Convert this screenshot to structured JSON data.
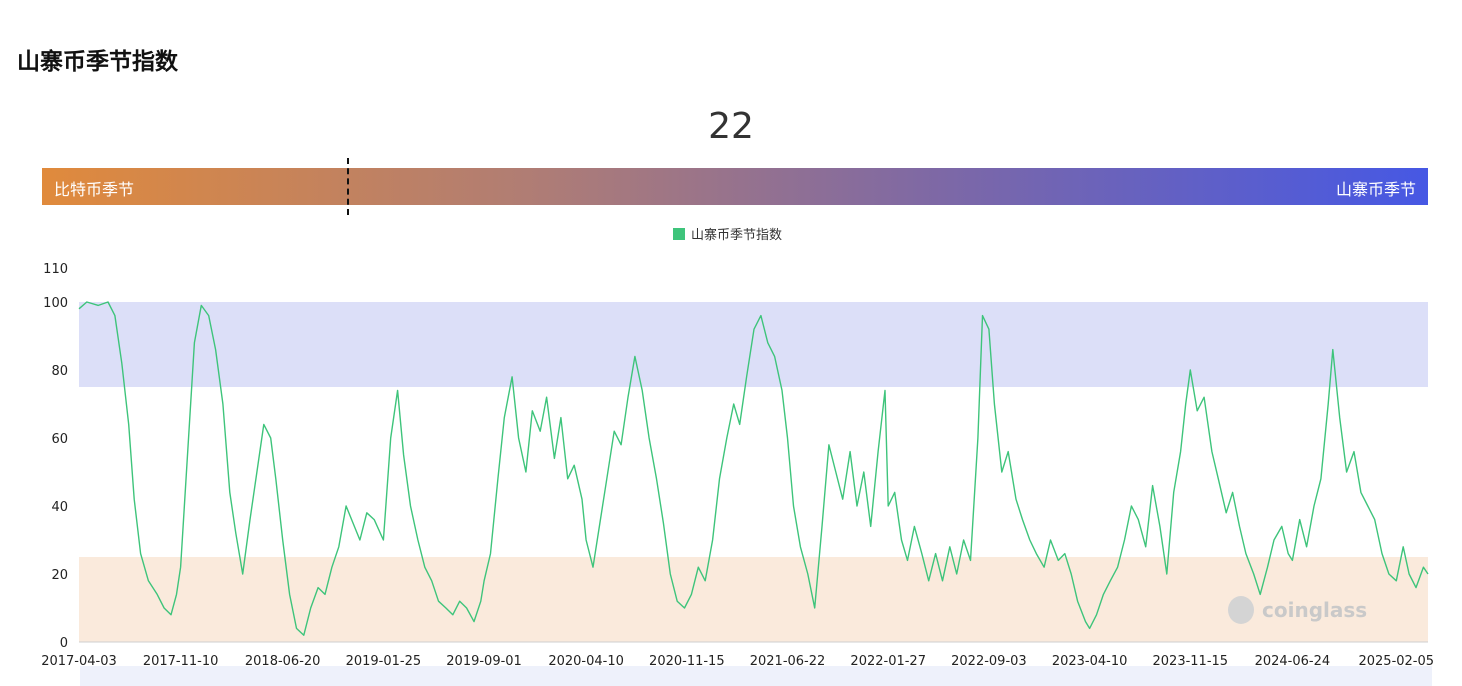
{
  "page": {
    "title": "山寨币季节指数"
  },
  "gauge": {
    "value": "22",
    "left_label": "比特币季节",
    "right_label": "山寨币季节",
    "value_fraction": 0.22
  },
  "chart_data": {
    "type": "line",
    "legend": "山寨币季节指数",
    "ylim": [
      0,
      110
    ],
    "y_ticks": [
      "0",
      "20",
      "40",
      "60",
      "80",
      "100",
      "110"
    ],
    "x_tick_labels": [
      "2017-04-03",
      "2017-11-10",
      "2018-06-20",
      "2019-01-25",
      "2019-09-01",
      "2020-04-10",
      "2020-11-15",
      "2021-06-22",
      "2022-01-27",
      "2022-09-03",
      "2023-04-10",
      "2023-11-15",
      "2024-06-24",
      "2025-02-05"
    ],
    "bands": [
      {
        "name": "altcoin-season-band",
        "from": 75,
        "to": 100,
        "color": "#dcdff8"
      },
      {
        "name": "bitcoin-season-band",
        "from": 0,
        "to": 25,
        "color": "#faeadc"
      }
    ],
    "series_color": "#3ec47b",
    "x_range": [
      "2017-04-03",
      "2025-04-15"
    ],
    "series": [
      {
        "name": "山寨币季节指数",
        "points": [
          [
            "2017-04-03",
            98
          ],
          [
            "2017-04-20",
            100
          ],
          [
            "2017-05-15",
            99
          ],
          [
            "2017-06-05",
            100
          ],
          [
            "2017-06-20",
            96
          ],
          [
            "2017-07-05",
            82
          ],
          [
            "2017-07-20",
            64
          ],
          [
            "2017-08-01",
            42
          ],
          [
            "2017-08-15",
            26
          ],
          [
            "2017-09-01",
            18
          ],
          [
            "2017-09-20",
            14
          ],
          [
            "2017-10-05",
            10
          ],
          [
            "2017-10-20",
            8
          ],
          [
            "2017-11-01",
            14
          ],
          [
            "2017-11-10",
            22
          ],
          [
            "2017-11-25",
            55
          ],
          [
            "2017-12-10",
            88
          ],
          [
            "2017-12-25",
            99
          ],
          [
            "2018-01-10",
            96
          ],
          [
            "2018-01-25",
            86
          ],
          [
            "2018-02-10",
            70
          ],
          [
            "2018-02-25",
            44
          ],
          [
            "2018-03-10",
            32
          ],
          [
            "2018-03-25",
            20
          ],
          [
            "2018-04-10",
            36
          ],
          [
            "2018-04-25",
            50
          ],
          [
            "2018-05-10",
            64
          ],
          [
            "2018-05-25",
            60
          ],
          [
            "2018-06-05",
            48
          ],
          [
            "2018-06-20",
            30
          ],
          [
            "2018-07-05",
            14
          ],
          [
            "2018-07-20",
            4
          ],
          [
            "2018-08-05",
            2
          ],
          [
            "2018-08-20",
            10
          ],
          [
            "2018-09-05",
            16
          ],
          [
            "2018-09-20",
            14
          ],
          [
            "2018-10-05",
            22
          ],
          [
            "2018-10-20",
            28
          ],
          [
            "2018-11-05",
            40
          ],
          [
            "2018-11-20",
            35
          ],
          [
            "2018-12-05",
            30
          ],
          [
            "2018-12-20",
            38
          ],
          [
            "2019-01-05",
            36
          ],
          [
            "2019-01-25",
            30
          ],
          [
            "2019-02-10",
            60
          ],
          [
            "2019-02-25",
            74
          ],
          [
            "2019-03-10",
            55
          ],
          [
            "2019-03-25",
            40
          ],
          [
            "2019-04-10",
            30
          ],
          [
            "2019-04-25",
            22
          ],
          [
            "2019-05-10",
            18
          ],
          [
            "2019-05-25",
            12
          ],
          [
            "2019-06-10",
            10
          ],
          [
            "2019-06-25",
            8
          ],
          [
            "2019-07-10",
            12
          ],
          [
            "2019-07-25",
            10
          ],
          [
            "2019-08-10",
            6
          ],
          [
            "2019-08-25",
            12
          ],
          [
            "2019-09-01",
            18
          ],
          [
            "2019-09-15",
            26
          ],
          [
            "2019-10-01",
            48
          ],
          [
            "2019-10-15",
            66
          ],
          [
            "2019-11-01",
            78
          ],
          [
            "2019-11-15",
            60
          ],
          [
            "2019-12-01",
            50
          ],
          [
            "2019-12-15",
            68
          ],
          [
            "2020-01-01",
            62
          ],
          [
            "2020-01-15",
            72
          ],
          [
            "2020-02-01",
            54
          ],
          [
            "2020-02-15",
            66
          ],
          [
            "2020-03-01",
            48
          ],
          [
            "2020-03-15",
            52
          ],
          [
            "2020-04-01",
            42
          ],
          [
            "2020-04-10",
            30
          ],
          [
            "2020-04-25",
            22
          ],
          [
            "2020-05-10",
            35
          ],
          [
            "2020-05-25",
            48
          ],
          [
            "2020-06-10",
            62
          ],
          [
            "2020-06-25",
            58
          ],
          [
            "2020-07-10",
            72
          ],
          [
            "2020-07-25",
            84
          ],
          [
            "2020-08-10",
            74
          ],
          [
            "2020-08-25",
            60
          ],
          [
            "2020-09-10",
            48
          ],
          [
            "2020-09-25",
            35
          ],
          [
            "2020-10-10",
            20
          ],
          [
            "2020-10-25",
            12
          ],
          [
            "2020-11-10",
            10
          ],
          [
            "2020-11-25",
            14
          ],
          [
            "2020-12-10",
            22
          ],
          [
            "2020-12-25",
            18
          ],
          [
            "2021-01-10",
            30
          ],
          [
            "2021-01-25",
            48
          ],
          [
            "2021-02-10",
            60
          ],
          [
            "2021-02-25",
            70
          ],
          [
            "2021-03-10",
            64
          ],
          [
            "2021-03-25",
            78
          ],
          [
            "2021-04-10",
            92
          ],
          [
            "2021-04-25",
            96
          ],
          [
            "2021-05-10",
            88
          ],
          [
            "2021-05-25",
            84
          ],
          [
            "2021-06-10",
            74
          ],
          [
            "2021-06-22",
            60
          ],
          [
            "2021-07-05",
            40
          ],
          [
            "2021-07-20",
            28
          ],
          [
            "2021-08-05",
            20
          ],
          [
            "2021-08-20",
            10
          ],
          [
            "2021-09-05",
            34
          ],
          [
            "2021-09-20",
            58
          ],
          [
            "2021-10-05",
            50
          ],
          [
            "2021-10-20",
            42
          ],
          [
            "2021-11-05",
            56
          ],
          [
            "2021-11-20",
            40
          ],
          [
            "2021-12-05",
            50
          ],
          [
            "2021-12-20",
            34
          ],
          [
            "2022-01-05",
            56
          ],
          [
            "2022-01-20",
            74
          ],
          [
            "2022-01-27",
            40
          ],
          [
            "2022-02-10",
            44
          ],
          [
            "2022-02-25",
            30
          ],
          [
            "2022-03-10",
            24
          ],
          [
            "2022-03-25",
            34
          ],
          [
            "2022-04-10",
            26
          ],
          [
            "2022-04-25",
            18
          ],
          [
            "2022-05-10",
            26
          ],
          [
            "2022-05-25",
            18
          ],
          [
            "2022-06-10",
            28
          ],
          [
            "2022-06-25",
            20
          ],
          [
            "2022-07-10",
            30
          ],
          [
            "2022-07-25",
            24
          ],
          [
            "2022-08-10",
            60
          ],
          [
            "2022-08-20",
            96
          ],
          [
            "2022-09-03",
            92
          ],
          [
            "2022-09-15",
            70
          ],
          [
            "2022-10-01",
            50
          ],
          [
            "2022-10-15",
            56
          ],
          [
            "2022-11-01",
            42
          ],
          [
            "2022-11-15",
            36
          ],
          [
            "2022-12-01",
            30
          ],
          [
            "2022-12-15",
            26
          ],
          [
            "2023-01-01",
            22
          ],
          [
            "2023-01-15",
            30
          ],
          [
            "2023-02-01",
            24
          ],
          [
            "2023-02-15",
            26
          ],
          [
            "2023-03-01",
            20
          ],
          [
            "2023-03-15",
            12
          ],
          [
            "2023-04-01",
            6
          ],
          [
            "2023-04-10",
            4
          ],
          [
            "2023-04-25",
            8
          ],
          [
            "2023-05-10",
            14
          ],
          [
            "2023-05-25",
            18
          ],
          [
            "2023-06-10",
            22
          ],
          [
            "2023-06-25",
            30
          ],
          [
            "2023-07-10",
            40
          ],
          [
            "2023-07-25",
            36
          ],
          [
            "2023-08-10",
            28
          ],
          [
            "2023-08-25",
            46
          ],
          [
            "2023-09-10",
            34
          ],
          [
            "2023-09-25",
            20
          ],
          [
            "2023-10-10",
            44
          ],
          [
            "2023-10-25",
            56
          ],
          [
            "2023-11-05",
            70
          ],
          [
            "2023-11-15",
            80
          ],
          [
            "2023-11-30",
            68
          ],
          [
            "2023-12-15",
            72
          ],
          [
            "2024-01-01",
            56
          ],
          [
            "2024-01-15",
            48
          ],
          [
            "2024-02-01",
            38
          ],
          [
            "2024-02-15",
            44
          ],
          [
            "2024-03-01",
            34
          ],
          [
            "2024-03-15",
            26
          ],
          [
            "2024-04-01",
            20
          ],
          [
            "2024-04-15",
            14
          ],
          [
            "2024-05-01",
            22
          ],
          [
            "2024-05-15",
            30
          ],
          [
            "2024-06-01",
            34
          ],
          [
            "2024-06-15",
            26
          ],
          [
            "2024-06-24",
            24
          ],
          [
            "2024-07-10",
            36
          ],
          [
            "2024-07-25",
            28
          ],
          [
            "2024-08-10",
            40
          ],
          [
            "2024-08-25",
            48
          ],
          [
            "2024-09-10",
            70
          ],
          [
            "2024-09-20",
            86
          ],
          [
            "2024-10-05",
            66
          ],
          [
            "2024-10-20",
            50
          ],
          [
            "2024-11-05",
            56
          ],
          [
            "2024-11-20",
            44
          ],
          [
            "2024-12-05",
            40
          ],
          [
            "2024-12-20",
            36
          ],
          [
            "2025-01-05",
            26
          ],
          [
            "2025-01-20",
            20
          ],
          [
            "2025-02-05",
            18
          ],
          [
            "2025-02-20",
            28
          ],
          [
            "2025-03-05",
            20
          ],
          [
            "2025-03-20",
            16
          ],
          [
            "2025-04-05",
            22
          ],
          [
            "2025-04-15",
            20
          ]
        ]
      }
    ]
  },
  "watermark": {
    "text": "coinglass"
  }
}
